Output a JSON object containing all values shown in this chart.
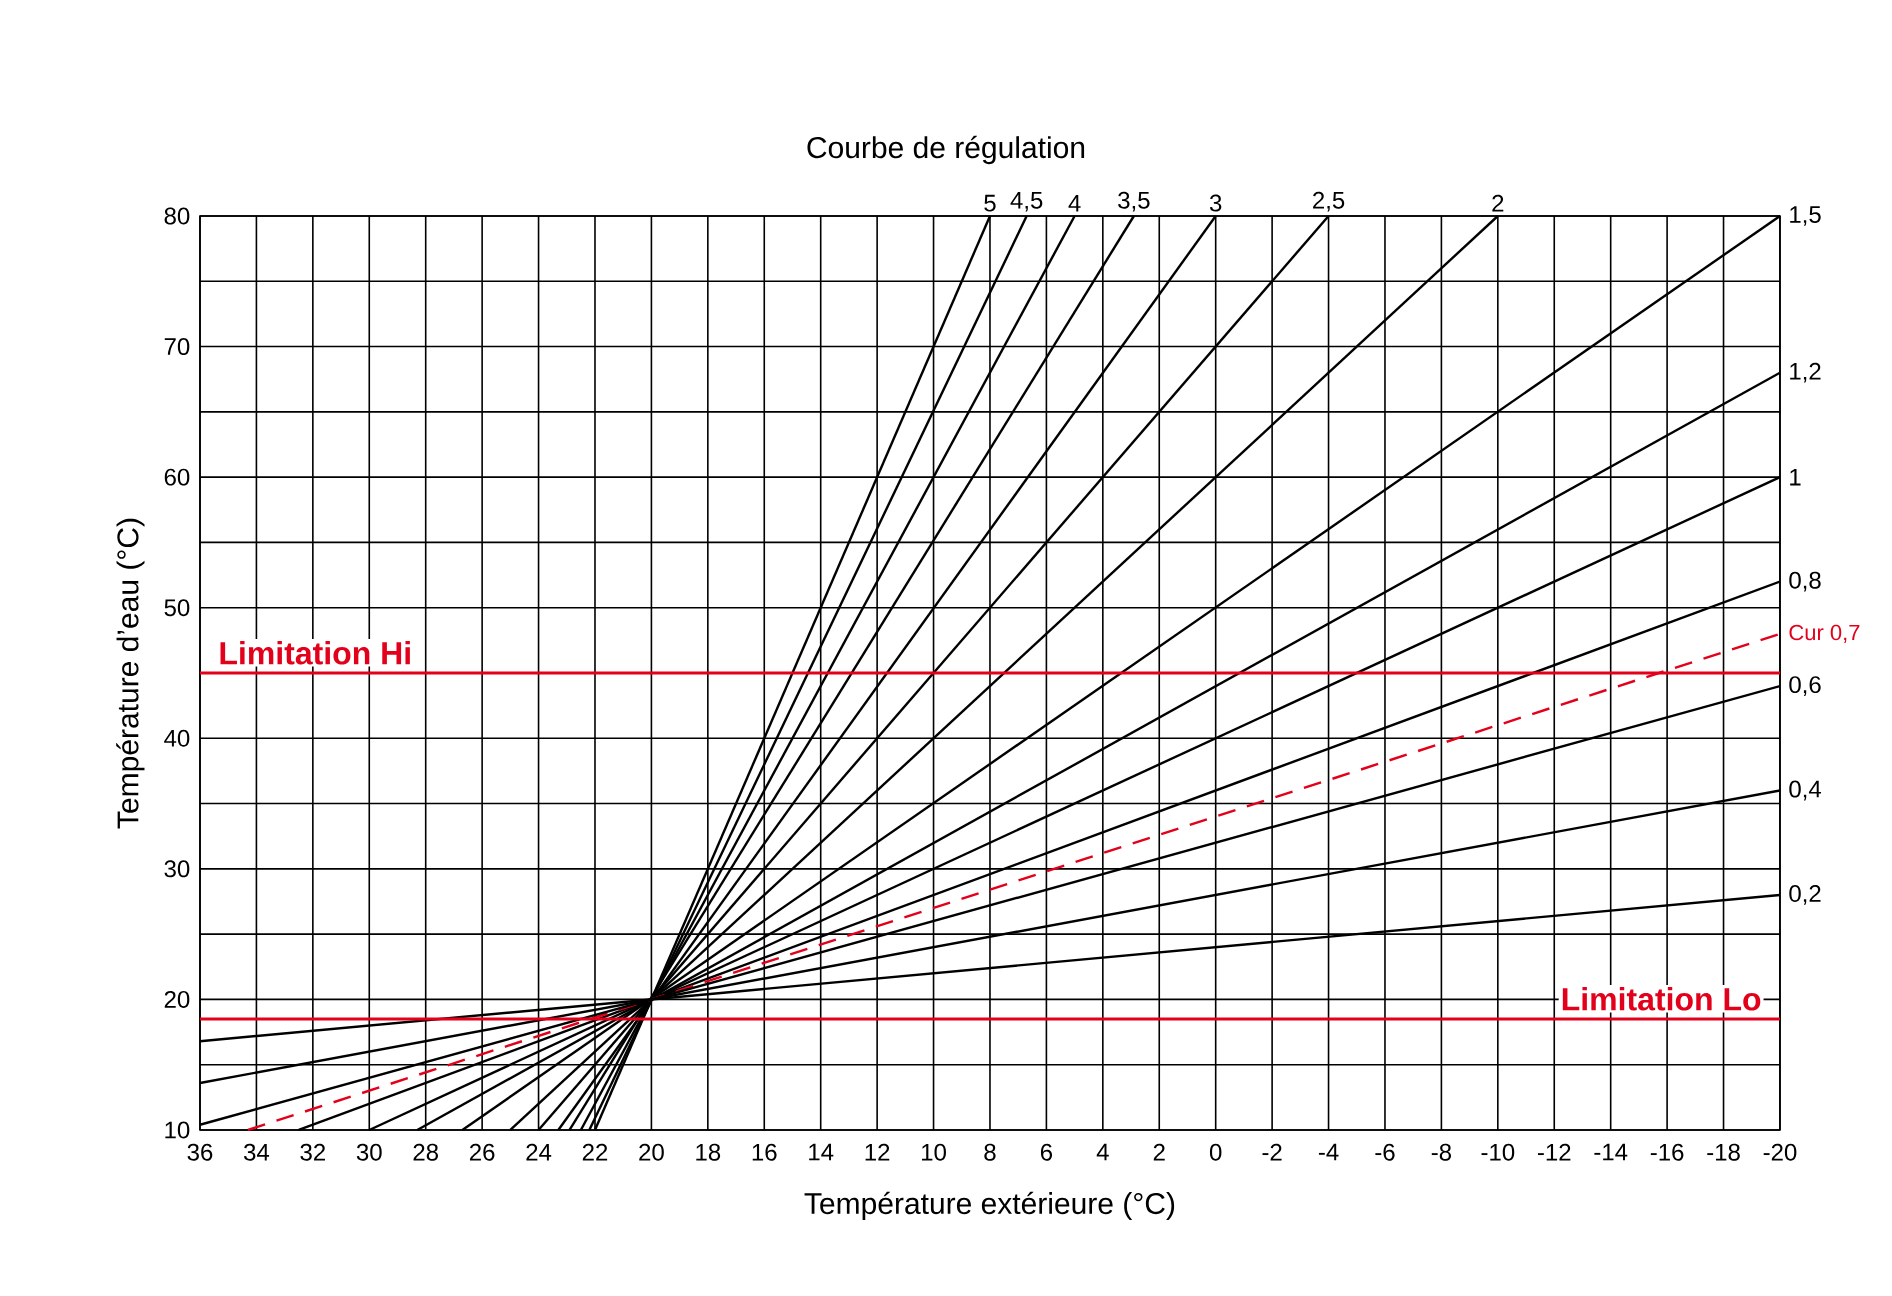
{
  "chart_data": {
    "type": "line",
    "title": "Courbe de régulation",
    "xlabel": "Température extérieure (°C)",
    "ylabel": "Température d’eau (°C)",
    "xlim": [
      36,
      -20
    ],
    "ylim": [
      10,
      80
    ],
    "xticks": [
      36,
      34,
      32,
      30,
      28,
      26,
      24,
      22,
      20,
      18,
      16,
      14,
      12,
      10,
      8,
      6,
      4,
      2,
      0,
      -2,
      -4,
      -6,
      -8,
      -10,
      -12,
      -14,
      -16,
      -18,
      -20
    ],
    "yticks": [
      10,
      {
        "value": 15,
        "label": null
      },
      20,
      {
        "value": 25,
        "label": null
      },
      30,
      {
        "value": 35,
        "label": null
      },
      40,
      {
        "value": 45,
        "label": null
      },
      50,
      {
        "value": 55,
        "label": null
      },
      60,
      {
        "value": 65,
        "label": null
      },
      70,
      {
        "value": 75,
        "label": null
      },
      80
    ],
    "grid": true,
    "marker": "none",
    "series": [
      {
        "name": "5",
        "color": "#000000",
        "x": [
          22,
          8
        ],
        "values": [
          10,
          80
        ]
      },
      {
        "name": "4,5",
        "color": "#000000",
        "x": [
          22.2,
          6.7
        ],
        "values": [
          10,
          80
        ]
      },
      {
        "name": "4",
        "color": "#000000",
        "x": [
          22.5,
          5
        ],
        "values": [
          10,
          80
        ]
      },
      {
        "name": "3,5",
        "color": "#000000",
        "x": [
          22.9,
          2.9
        ],
        "values": [
          10,
          80
        ]
      },
      {
        "name": "3",
        "color": "#000000",
        "x": [
          23.3,
          0
        ],
        "values": [
          10,
          80
        ]
      },
      {
        "name": "2,5",
        "color": "#000000",
        "x": [
          24,
          -4
        ],
        "values": [
          10,
          80
        ]
      },
      {
        "name": "2",
        "color": "#000000",
        "x": [
          25,
          -10
        ],
        "values": [
          10,
          80
        ]
      },
      {
        "name": "1,5",
        "color": "#000000",
        "x": [
          26.7,
          -20
        ],
        "values": [
          10,
          80
        ]
      },
      {
        "name": "1,2",
        "color": "#000000",
        "x": [
          28.3,
          -20
        ],
        "values": [
          10,
          68
        ]
      },
      {
        "name": "1",
        "color": "#000000",
        "x": [
          30,
          -20
        ],
        "values": [
          10,
          60
        ]
      },
      {
        "name": "0,8",
        "color": "#000000",
        "x": [
          32.5,
          -20
        ],
        "values": [
          10,
          52
        ]
      },
      {
        "name": "Cur 0,7",
        "color": "#e3001b",
        "line_style": "dashed",
        "x": [
          34.3,
          -20
        ],
        "values": [
          10,
          48
        ]
      },
      {
        "name": "0,6",
        "color": "#000000",
        "x": [
          36,
          -20
        ],
        "values": [
          10.4,
          44
        ]
      },
      {
        "name": "0,4",
        "color": "#000000",
        "x": [
          36,
          -20
        ],
        "values": [
          13.6,
          36
        ]
      },
      {
        "name": "0,2",
        "color": "#000000",
        "x": [
          36,
          -20
        ],
        "values": [
          16.8,
          28
        ]
      }
    ],
    "ref_lines": [
      {
        "axis": "y",
        "value": 45,
        "label": "Limitation Hi",
        "color": "#e3001b"
      },
      {
        "axis": "y",
        "value": 18.5,
        "label": "Limitation Lo",
        "color": "#e3001b"
      }
    ]
  }
}
